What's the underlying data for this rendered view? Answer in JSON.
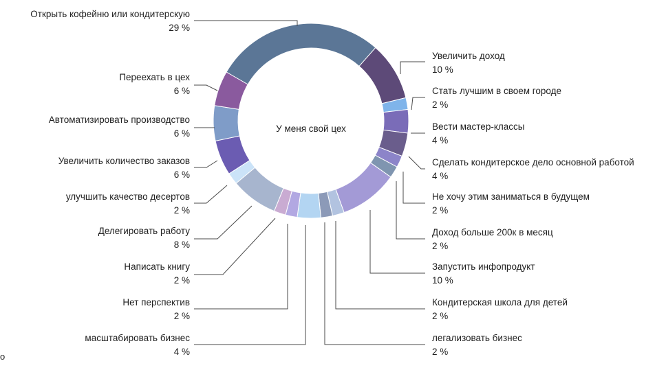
{
  "chart_data": {
    "type": "donut",
    "center_label": "У меня свой цех",
    "unit": "%",
    "slices": [
      {
        "label": "Открыть кофейню или кондитерскую",
        "value": 29,
        "color": "#5b7696"
      },
      {
        "label": "Увеличить доход",
        "value": 10,
        "color": "#5d4a78"
      },
      {
        "label": "Стать лучшим в своем городе",
        "value": 2,
        "color": "#7fb4ea"
      },
      {
        "label": "Вести мастер-классы",
        "value": 4,
        "color": "#7a6cb8"
      },
      {
        "label": "Сделать кондитерское дело основной работой",
        "value": 4,
        "color": "#6a5d8c"
      },
      {
        "label": "Не хочу этим заниматься в будущем",
        "value": 2,
        "color": "#8c84c9"
      },
      {
        "label": "Доход больше 200к в месяц",
        "value": 2,
        "color": "#7f95b0"
      },
      {
        "label": "Запустить инфопродукт",
        "value": 10,
        "color": "#a39ad6"
      },
      {
        "label": "Кондитерская школа для детей",
        "value": 2,
        "color": "#b2c3e0"
      },
      {
        "label": "легализовать бизнес",
        "value": 2,
        "color": "#8c9ab8"
      },
      {
        "label": "масштабировать бизнес",
        "value": 4,
        "color": "#b3d5f2"
      },
      {
        "label": "Нет перспектив",
        "value": 2,
        "color": "#b2a8e2"
      },
      {
        "label": "Написать книгу",
        "value": 2,
        "color": "#c9abd2"
      },
      {
        "label": "Делегировать работу",
        "value": 8,
        "color": "#a7b5ce"
      },
      {
        "label": "улучшить качество десертов",
        "value": 2,
        "color": "#cbe3f8"
      },
      {
        "label": "Увеличить количество заказов",
        "value": 6,
        "color": "#6b5cb2"
      },
      {
        "label": "Автоматизировать производство",
        "value": 6,
        "color": "#7f9cc8"
      },
      {
        "label": "Переехать в цех",
        "value": 6,
        "color": "#8a5a9e"
      }
    ]
  },
  "stray_text": "о"
}
